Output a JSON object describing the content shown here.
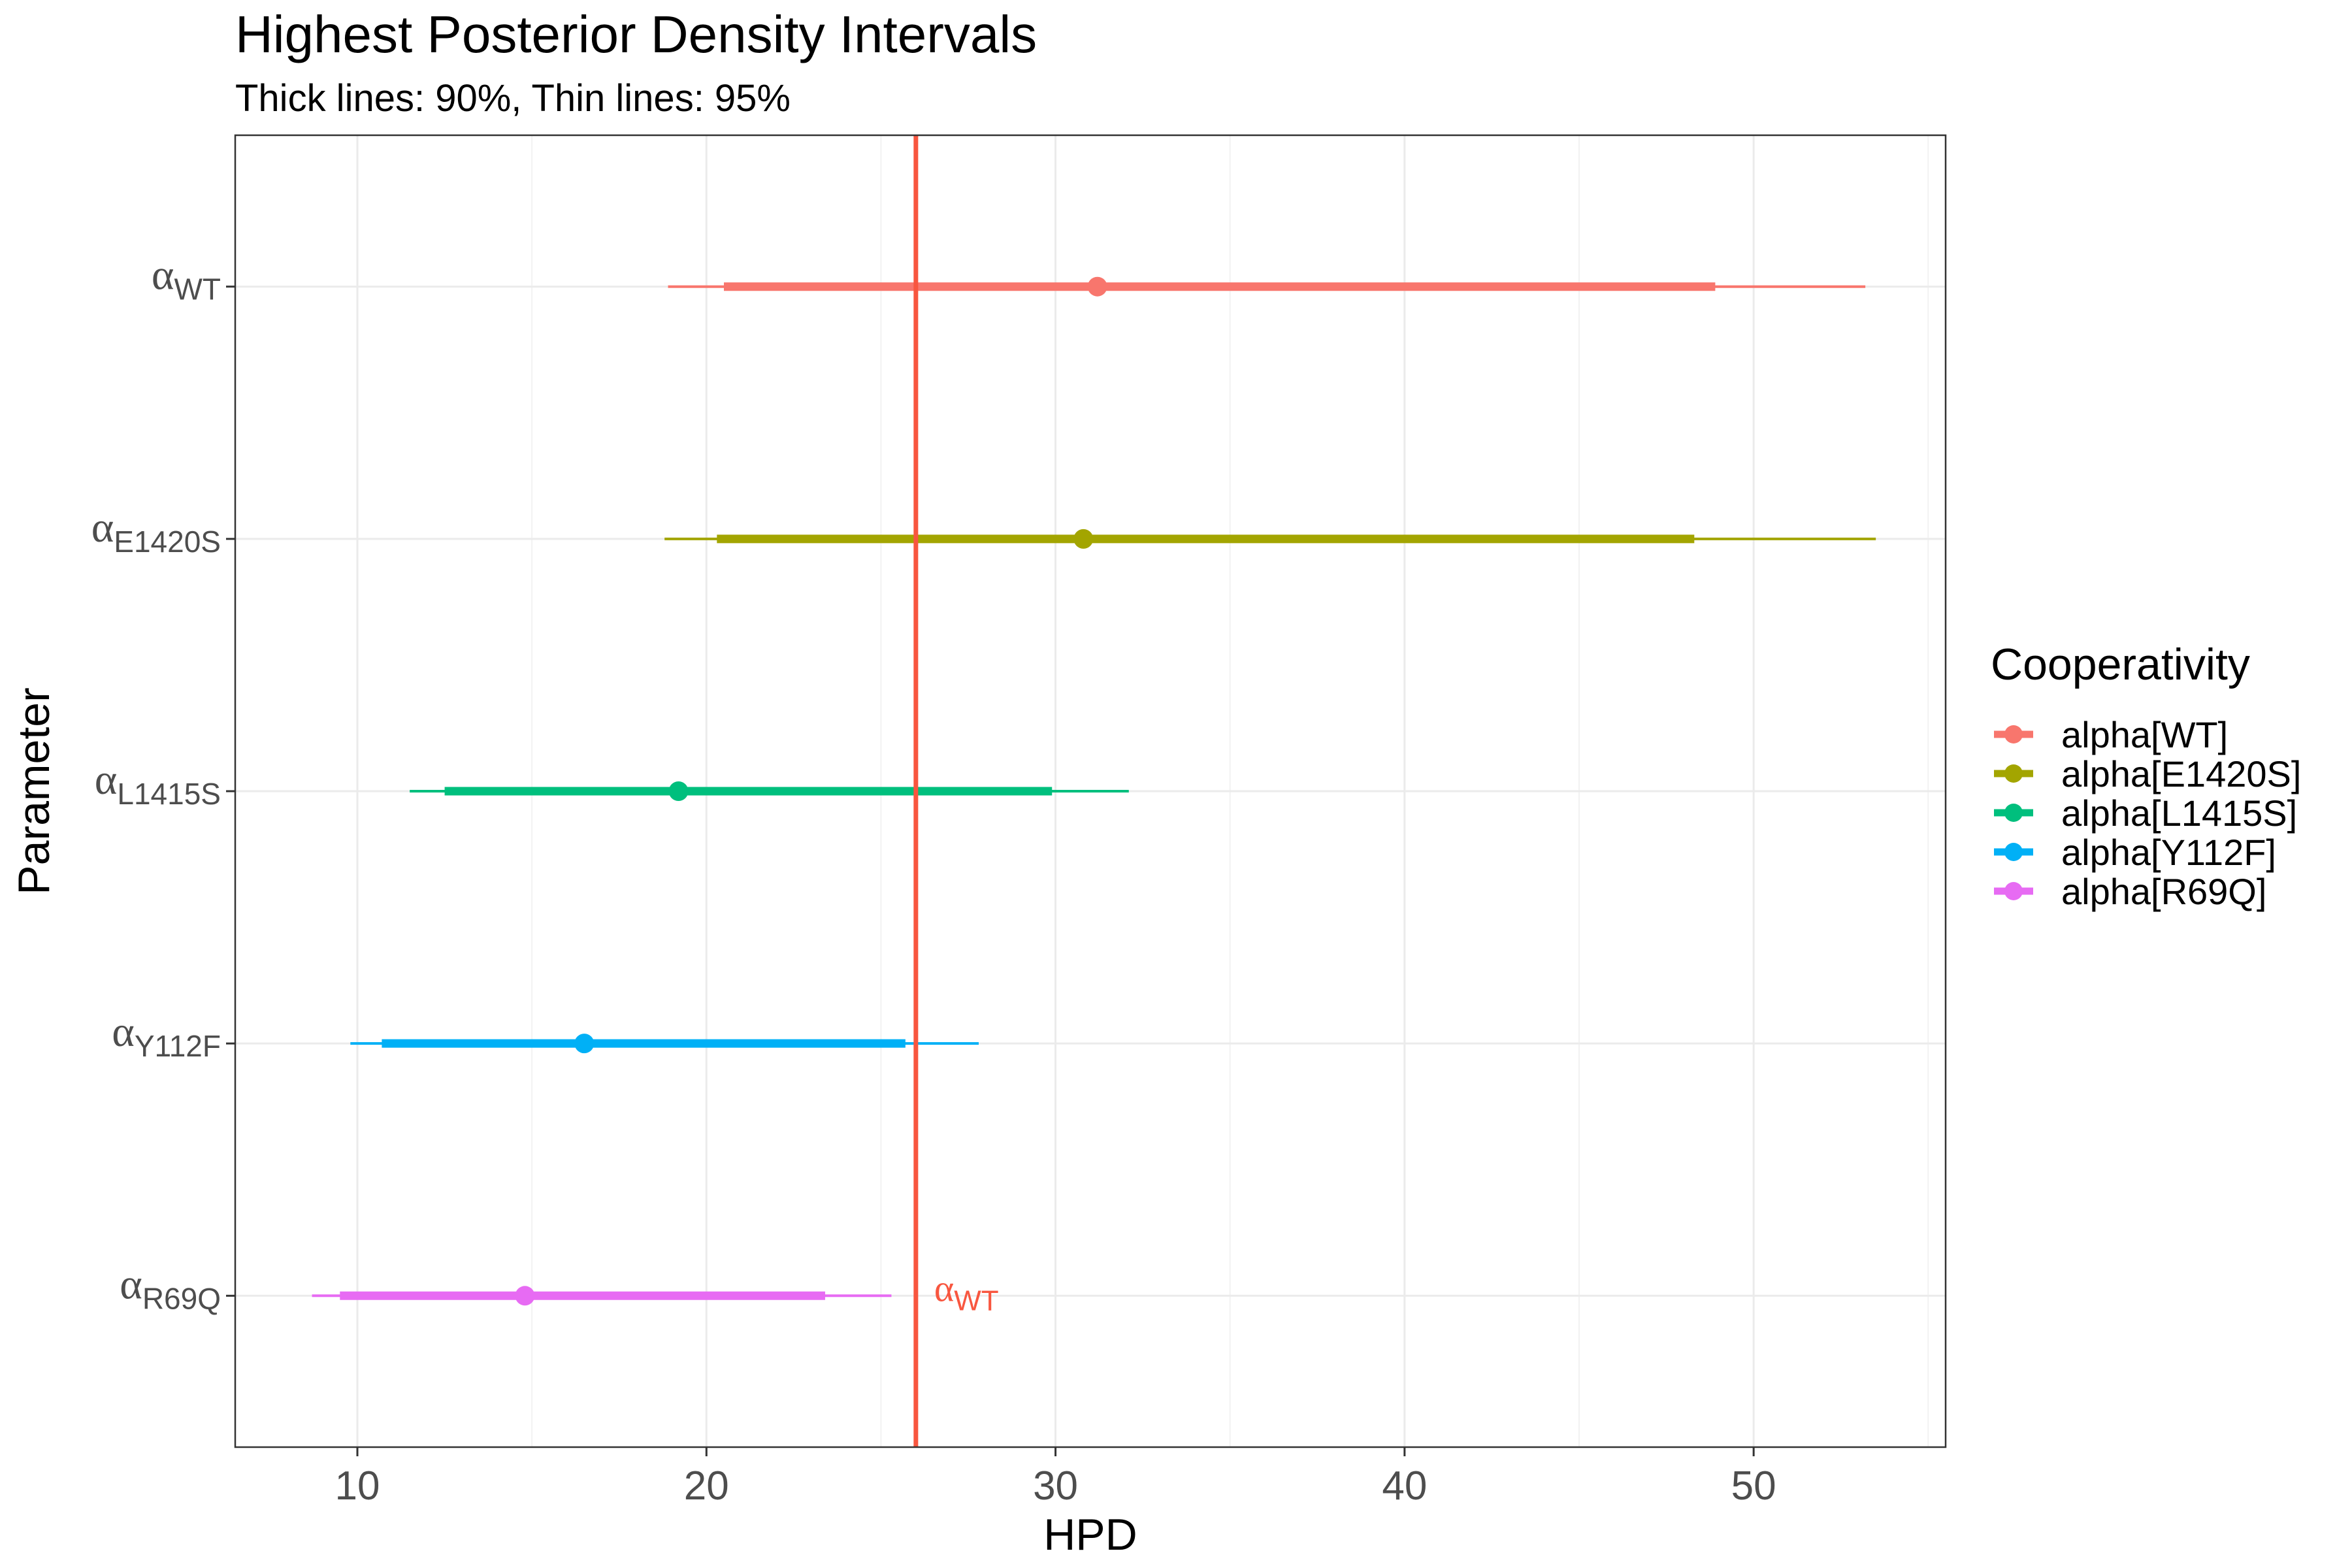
{
  "chart_data": {
    "type": "interval",
    "title": "Highest Posterior Density Intervals",
    "subtitle": "Thick lines: 90%, Thin lines: 95%",
    "xlabel": "HPD",
    "ylabel": "Parameter",
    "xlim": [
      6.5,
      55.5
    ],
    "x_ticks": [
      10,
      20,
      30,
      40,
      50
    ],
    "x_tick_labels": [
      "10",
      "20",
      "30",
      "40",
      "50"
    ],
    "grid": true,
    "legend": {
      "title": "Cooperativity",
      "position": "right"
    },
    "reference_line": {
      "x": 26,
      "color": "#F8563F",
      "label_symbol": "α",
      "label_sub": "WT"
    },
    "series": [
      {
        "name": "alpha[WT]",
        "symbol": "α",
        "sub": "WT",
        "color": "#F8766D",
        "median": 31.2,
        "hpd90": [
          20.5,
          48.9
        ],
        "hpd95": [
          18.9,
          53.2
        ]
      },
      {
        "name": "alpha[E1420S]",
        "symbol": "α",
        "sub": "E1420S",
        "color": "#A3A500",
        "median": 30.8,
        "hpd90": [
          20.3,
          48.3
        ],
        "hpd95": [
          18.8,
          53.5
        ]
      },
      {
        "name": "alpha[L1415S]",
        "symbol": "α",
        "sub": "L1415S",
        "color": "#00BF7D",
        "median": 19.2,
        "hpd90": [
          12.5,
          29.9
        ],
        "hpd95": [
          11.5,
          32.1
        ]
      },
      {
        "name": "alpha[Y112F]",
        "symbol": "α",
        "sub": "Y112F",
        "color": "#00B0F6",
        "median": 16.5,
        "hpd90": [
          10.7,
          25.7
        ],
        "hpd95": [
          9.8,
          27.8
        ]
      },
      {
        "name": "alpha[R69Q]",
        "symbol": "α",
        "sub": "R69Q",
        "color": "#E76BF3",
        "median": 14.8,
        "hpd90": [
          9.5,
          23.4
        ],
        "hpd95": [
          8.7,
          25.3
        ]
      }
    ]
  }
}
